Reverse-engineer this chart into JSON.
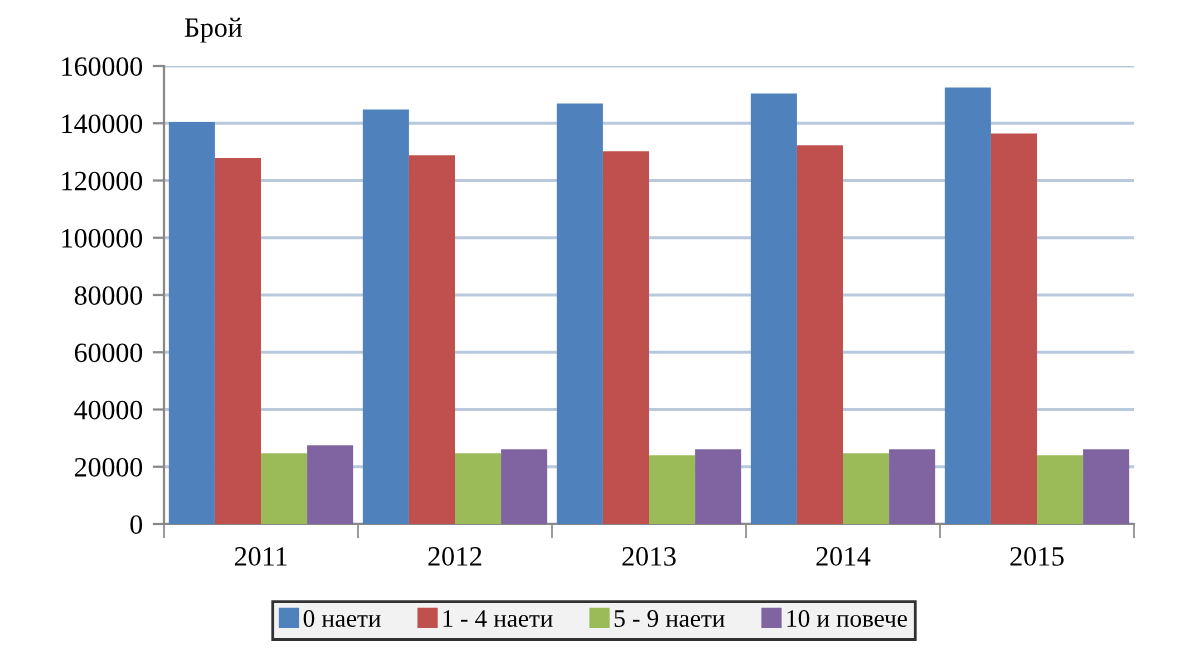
{
  "chart_data": {
    "type": "bar",
    "ylabel": "Брой",
    "categories": [
      "2011",
      "2012",
      "2013",
      "2014",
      "2015"
    ],
    "series": [
      {
        "name": "0 наети",
        "color": "#4f81bd",
        "values": [
          140400,
          144800,
          146900,
          150400,
          152500
        ]
      },
      {
        "name": "1 - 4 наети",
        "color": "#c0504d",
        "values": [
          127900,
          128800,
          130200,
          132300,
          136400
        ]
      },
      {
        "name": "5 - 9 наети",
        "color": "#9bbb59",
        "values": [
          24700,
          24700,
          24000,
          24700,
          24000
        ]
      },
      {
        "name": "10 и повече",
        "color": "#8064a2",
        "values": [
          27500,
          26100,
          26100,
          26100,
          26100
        ]
      }
    ],
    "ylim": [
      0,
      160000
    ],
    "yticks": [
      0,
      20000,
      40000,
      60000,
      80000,
      100000,
      120000,
      140000,
      160000
    ],
    "grid": "y",
    "legend": "bottom"
  }
}
